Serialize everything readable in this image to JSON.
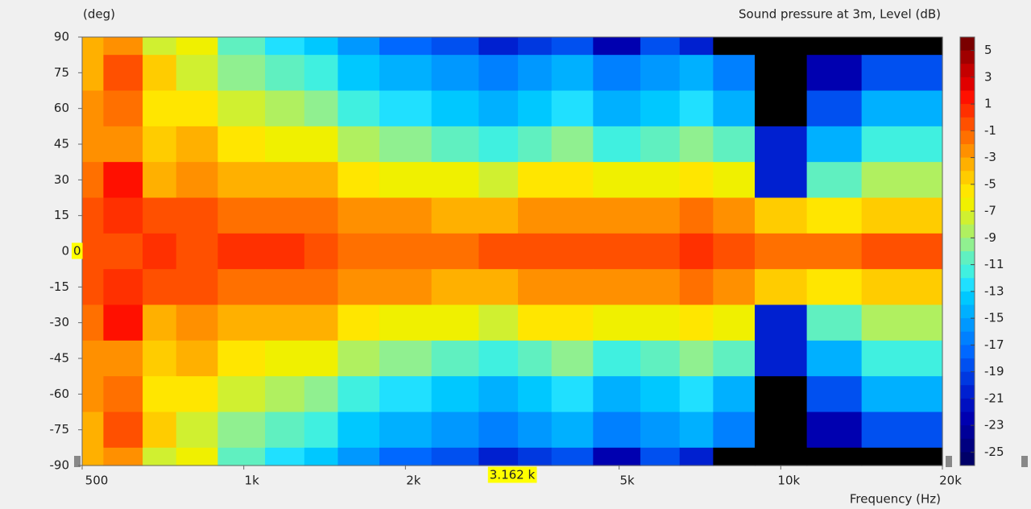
{
  "chart_data": {
    "type": "contour",
    "title": "Sound pressure at 3m, Level  (dB)",
    "y_label": "(deg)",
    "x_label": "Frequency  (Hz)",
    "log_x": true,
    "xlim": [
      500,
      20000
    ],
    "xticks": [
      500,
      {
        "value": 1000,
        "label": "1k"
      },
      {
        "value": 2000,
        "label": "2k"
      },
      {
        "value": 5000,
        "label": "5k"
      },
      {
        "value": 10000,
        "label": "10k"
      },
      {
        "value": 20000,
        "label": "20k"
      }
    ],
    "ylim": [
      -90,
      90
    ],
    "yticks": [
      90,
      75,
      60,
      45,
      30,
      15,
      0,
      -15,
      -30,
      -45,
      -60,
      -75,
      -90
    ],
    "x": [
      500,
      600,
      700,
      800,
      1000,
      1200,
      1400,
      1600,
      2000,
      2500,
      3000,
      3500,
      4000,
      5000,
      6000,
      7000,
      8000,
      10000,
      12500,
      16000
    ],
    "y": [
      90,
      75,
      60,
      45,
      30,
      15,
      0,
      -15,
      -30,
      -45,
      -60,
      -75,
      -90
    ],
    "z": [
      [
        -3,
        -2,
        -7,
        -6,
        -10,
        -12,
        -13,
        -15,
        -17,
        -18,
        -20,
        -19,
        -18,
        -22,
        -18,
        -20,
        -30,
        -30,
        -30,
        -30
      ],
      [
        -3,
        0,
        -4,
        -7,
        -9,
        -10,
        -11,
        -13,
        -14,
        -15,
        -16,
        -15,
        -14,
        -16,
        -15,
        -14,
        -16,
        -30,
        -22,
        -18
      ],
      [
        -2,
        -1,
        -5,
        -5,
        -7,
        -8,
        -9,
        -11,
        -12,
        -13,
        -14,
        -13,
        -12,
        -14,
        -13,
        -12,
        -14,
        -28,
        -18,
        -14
      ],
      [
        -2,
        -2,
        -4,
        -3,
        -5,
        -6,
        -6,
        -8,
        -9,
        -10,
        -11,
        -10,
        -9,
        -11,
        -10,
        -9,
        -10,
        -20,
        -14,
        -11
      ],
      [
        -1,
        2,
        -3,
        -2,
        -3,
        -3,
        -3,
        -5,
        -6,
        -6,
        -7,
        -5,
        -5,
        -6,
        -6,
        -5,
        -6,
        -20,
        -10,
        -8
      ],
      [
        0,
        1,
        0,
        0,
        -1,
        -1,
        -1,
        -2,
        -2,
        -3,
        -3,
        -2,
        -2,
        -2,
        -2,
        -1,
        -2,
        -4,
        -5,
        -4
      ],
      [
        0,
        0,
        1,
        0,
        1,
        1,
        0,
        -1,
        -1,
        -1,
        0,
        0,
        0,
        0,
        0,
        1,
        0,
        -1,
        -1,
        0
      ],
      [
        0,
        1,
        0,
        0,
        -1,
        -1,
        -1,
        -2,
        -2,
        -3,
        -3,
        -2,
        -2,
        -2,
        -2,
        -1,
        -2,
        -4,
        -5,
        -4
      ],
      [
        -1,
        2,
        -3,
        -2,
        -3,
        -3,
        -3,
        -5,
        -6,
        -6,
        -7,
        -5,
        -5,
        -6,
        -6,
        -5,
        -6,
        -20,
        -10,
        -8
      ],
      [
        -2,
        -2,
        -4,
        -3,
        -5,
        -6,
        -6,
        -8,
        -9,
        -10,
        -11,
        -10,
        -9,
        -11,
        -10,
        -9,
        -10,
        -20,
        -14,
        -11
      ],
      [
        -2,
        -1,
        -5,
        -5,
        -7,
        -8,
        -9,
        -11,
        -12,
        -13,
        -14,
        -13,
        -12,
        -14,
        -13,
        -12,
        -14,
        -28,
        -18,
        -14
      ],
      [
        -3,
        0,
        -4,
        -7,
        -9,
        -10,
        -11,
        -13,
        -14,
        -15,
        -16,
        -15,
        -14,
        -16,
        -15,
        -14,
        -16,
        -30,
        -22,
        -18
      ],
      [
        -3,
        -2,
        -7,
        -6,
        -10,
        -12,
        -13,
        -15,
        -17,
        -18,
        -20,
        -19,
        -18,
        -22,
        -18,
        -20,
        -30,
        -30,
        -30,
        -30
      ]
    ],
    "clim": [
      -26,
      6
    ],
    "cticks": [
      5,
      3,
      1,
      -1,
      -3,
      -5,
      -7,
      -9,
      -11,
      -13,
      -15,
      -17,
      -19,
      -21,
      -23,
      -25
    ],
    "colors": [
      "#7a0000",
      "#a00000",
      "#c40000",
      "#e00000",
      "#ff1000",
      "#ff3000",
      "#ff5000",
      "#ff7000",
      "#ff9000",
      "#ffb000",
      "#ffcc00",
      "#ffe600",
      "#f0f000",
      "#d0f030",
      "#b0f060",
      "#90f090",
      "#60f0c0",
      "#40f0e0",
      "#20e0ff",
      "#00c8ff",
      "#00b0ff",
      "#0098ff",
      "#0080ff",
      "#0068ff",
      "#0050f0",
      "#0038e0",
      "#0020d0",
      "#0010c0",
      "#0000b0",
      "#000098",
      "#000080",
      "#000068"
    ],
    "below_color": "#000000",
    "cursor_x": {
      "value": 3162,
      "label": "3.162 k"
    },
    "cursor_y": 0
  }
}
